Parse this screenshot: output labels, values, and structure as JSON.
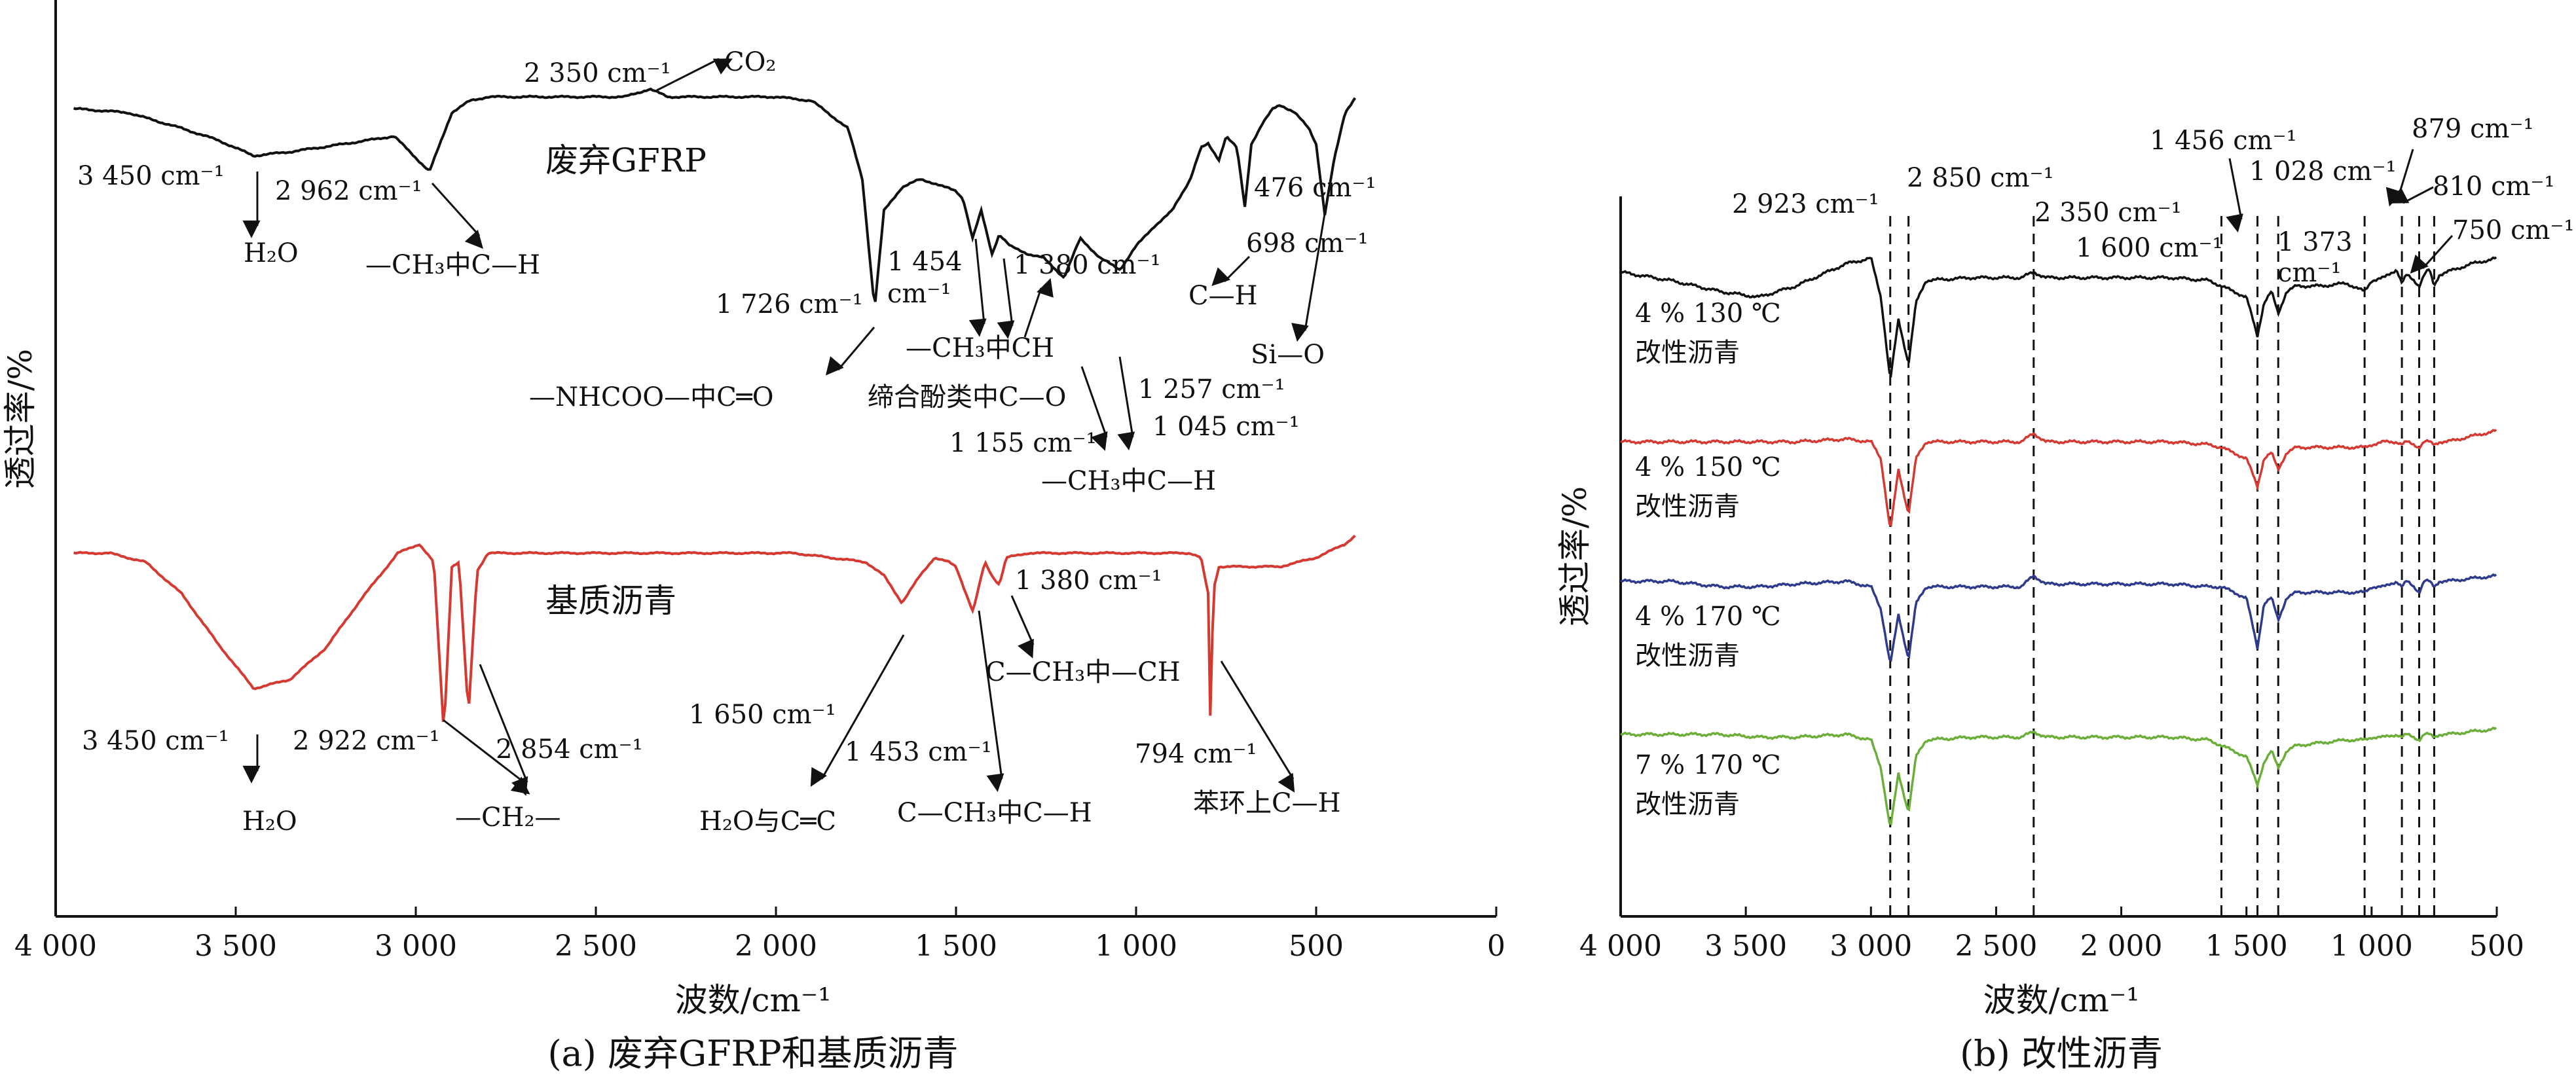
{
  "chart_data": [
    {
      "type": "line",
      "caption": "(a) 废弃GFRP和基质沥青",
      "xlabel": "波数/cm⁻¹",
      "ylabel": "透过率/%",
      "xlim": [
        4000,
        0
      ],
      "x_reversed": true,
      "xticks": [
        "4 000",
        "3 500",
        "3 000",
        "2 500",
        "2 000",
        "1 500",
        "1 000",
        "500",
        "0"
      ],
      "y_ticks_shown": false,
      "grid": false,
      "colors": {
        "waste_gfrp": "#111111",
        "base_asphalt": "#d43a32"
      },
      "series": [
        {
          "name": "废弃GFRP",
          "color": "#111111",
          "x": [
            3950,
            3800,
            3650,
            3550,
            3450,
            3350,
            3200,
            3060,
            2962,
            2900,
            2850,
            2800,
            2700,
            2600,
            2500,
            2420,
            2350,
            2300,
            2200,
            2100,
            2000,
            1900,
            1800,
            1760,
            1726,
            1700,
            1650,
            1600,
            1560,
            1530,
            1500,
            1480,
            1454,
            1430,
            1400,
            1380,
            1350,
            1300,
            1257,
            1200,
            1155,
            1100,
            1045,
            1000,
            950,
            900,
            850,
            820,
            800,
            770,
            750,
            720,
            698,
            680,
            650,
            620,
            600,
            560,
            520,
            500,
            476,
            450,
            420,
            390
          ],
          "y": [
            93,
            92,
            88,
            85,
            81,
            82,
            84,
            86,
            77,
            92,
            95,
            96,
            96,
            96,
            96,
            96,
            98,
            96,
            96,
            96,
            96,
            95,
            88,
            75,
            42,
            67,
            73,
            75,
            74,
            73,
            72,
            70,
            60,
            67,
            56,
            61,
            58,
            56,
            55,
            50,
            60,
            55,
            52,
            58,
            63,
            67,
            75,
            83,
            84,
            80,
            86,
            83,
            68,
            84,
            89,
            93,
            94,
            92,
            88,
            84,
            66,
            80,
            92,
            96
          ]
        },
        {
          "name": "基质沥青",
          "color": "#d43a32",
          "x": [
            3950,
            3850,
            3750,
            3650,
            3550,
            3450,
            3350,
            3250,
            3150,
            3050,
            2990,
            2950,
            2922,
            2900,
            2880,
            2854,
            2830,
            2800,
            2700,
            2500,
            2300,
            2100,
            1950,
            1850,
            1750,
            1700,
            1650,
            1600,
            1560,
            1520,
            1500,
            1453,
            1420,
            1400,
            1380,
            1360,
            1300,
            1200,
            1000,
            900,
            850,
            820,
            800,
            794,
            785,
            770,
            740,
            700,
            600,
            500,
            420,
            390
          ],
          "y": [
            88,
            88,
            86,
            79,
            68,
            58,
            60,
            67,
            78,
            88,
            90,
            86,
            48,
            85,
            86,
            52,
            84,
            88,
            88,
            88,
            88,
            88,
            88,
            87,
            86,
            83,
            77,
            83,
            87,
            86,
            85,
            75,
            86,
            83,
            81,
            87,
            88,
            88,
            88,
            88,
            88,
            87,
            79,
            52,
            80,
            85,
            85,
            85,
            85,
            87,
            90,
            92
          ]
        }
      ],
      "labels": [
        "废弃GFRP",
        "基质沥青"
      ],
      "annotations_gfrp": {
        "co2": "2 350 cm⁻¹",
        "co2_target": "CO₂",
        "oh_peak": "3 450 cm⁻¹",
        "oh_target": "H₂O",
        "ch_peak": "2 962 cm⁻¹",
        "ch_target": "—CH₃中C—H",
        "co_peak": "1 726 cm⁻¹",
        "co_target": "—NHCOO—中C═O",
        "p1454_a": "1 454",
        "p1454_b": "cm⁻¹",
        "p1380": "1 380 cm⁻¹",
        "ch3_target": "—CH₃中CH",
        "phenol_target": "缔合酚类中C—O",
        "p1257": "1 257 cm⁻¹",
        "p1155": "1 155 cm⁻¹",
        "p1045": "1 045 cm⁻¹",
        "ch3b_target": "—CH₃中C—H",
        "p698": "698 cm⁻¹",
        "ch_b_target": "C—H",
        "p476": "476 cm⁻¹",
        "sio_target": "Si—O"
      },
      "annotations_asphalt": {
        "oh_peak": "3 450 cm⁻¹",
        "oh_target": "H₂O",
        "p2922": "2 922 cm⁻¹",
        "p2854": "2 854 cm⁻¹",
        "ch2_target": "—CH₂—",
        "p1650": "1 650 cm⁻¹",
        "cc_target": "H₂O与C═C",
        "p1453": "1 453 cm⁻¹",
        "ch3_target": "C—CH₃中C—H",
        "p1380": "1 380 cm⁻¹",
        "ch_target": "C—CH₃中—CH",
        "p794": "794 cm⁻¹",
        "arom_target": "苯环上C—H"
      }
    },
    {
      "type": "line",
      "caption": "(b) 改性沥青",
      "xlabel": "波数/cm⁻¹",
      "ylabel": "透过率/%",
      "xlim": [
        4000,
        500
      ],
      "x_reversed": true,
      "xticks": [
        "4 000",
        "3 500",
        "3 000",
        "2 500",
        "2 000",
        "1 500",
        "1 000",
        "500"
      ],
      "y_ticks_shown": false,
      "grid": false,
      "reference_lines_x": [
        2923,
        2850,
        2350,
        1600,
        1456,
        1373,
        1028,
        879,
        810,
        750
      ],
      "reference_labels": {
        "r2923": "2 923 cm⁻¹",
        "r2850": "2 850 cm⁻¹",
        "r2350": "2 350 cm⁻¹",
        "r1600": "1 600 cm⁻¹",
        "r1456": "1 456 cm⁻¹",
        "r1373a": "1 373",
        "r1373b": "cm⁻¹",
        "r1028": "1 028 cm⁻¹",
        "r879": "879 cm⁻¹",
        "r810": "810 cm⁻¹",
        "r750": "750 cm⁻¹"
      },
      "x": [
        4000,
        3800,
        3600,
        3450,
        3300,
        3100,
        3000,
        2960,
        2923,
        2890,
        2850,
        2820,
        2780,
        2600,
        2400,
        2350,
        2300,
        2000,
        1800,
        1650,
        1600,
        1550,
        1500,
        1456,
        1430,
        1400,
        1373,
        1340,
        1300,
        1200,
        1100,
        1028,
        1000,
        950,
        900,
        879,
        860,
        830,
        810,
        790,
        770,
        750,
        730,
        700,
        600,
        500
      ],
      "series": [
        {
          "name_line1": "4 % 130 ℃",
          "name_line2": "改性沥青",
          "color": "#111111",
          "y": [
            0.5,
            -1,
            -3,
            -4,
            -2,
            2,
            3,
            -4,
            -19,
            -8,
            -16,
            -5,
            -1,
            -0.5,
            -0.5,
            0.5,
            -0.5,
            -0.5,
            -0.5,
            -1,
            -2,
            -3,
            -4,
            -11,
            -5,
            -3,
            -7,
            -3,
            -2,
            -2,
            -1.5,
            -3,
            -1,
            -0.5,
            1,
            -1.5,
            0,
            -1,
            -2,
            0,
            1,
            -2,
            0,
            0.5,
            2,
            3
          ]
        },
        {
          "name_line1": "4 % 150 ℃",
          "name_line2": "改性沥青",
          "color": "#d43a32",
          "y": [
            0,
            0,
            0,
            0,
            0,
            0.5,
            0,
            -3,
            -16,
            -5,
            -13,
            -3,
            0,
            0,
            0,
            1.5,
            0,
            0,
            0,
            -0.5,
            -1,
            -2,
            -3,
            -8,
            -3,
            -2,
            -5,
            -2,
            -1,
            -1,
            -1,
            -1,
            -0.5,
            0,
            0,
            -0.5,
            0,
            -0.5,
            -1,
            0,
            0,
            -0.5,
            0,
            0,
            1,
            2
          ]
        },
        {
          "name_line1": "4 % 170 ℃",
          "name_line2": "改性沥青",
          "color": "#2e3a8c",
          "y": [
            0,
            0,
            -1,
            -1,
            -0.5,
            0,
            -1,
            -5,
            -15,
            -6,
            -14,
            -4,
            -1,
            -1,
            -1,
            1,
            -0.5,
            -0.5,
            -0.5,
            -1,
            -1,
            -2,
            -3,
            -12,
            -4,
            -3,
            -7,
            -3,
            -2,
            -2,
            -2,
            -2,
            -1,
            -1,
            0,
            -1,
            0,
            -1,
            -2,
            0,
            0,
            -1,
            0,
            0,
            0.5,
            1
          ]
        },
        {
          "name_line1": "7 % 170 ℃",
          "name_line2": "改性沥青",
          "color": "#6cae3a",
          "y": [
            0,
            0,
            0,
            -0.5,
            -0.5,
            0,
            -1,
            -6,
            -17,
            -7,
            -14,
            -4,
            -1,
            -0.5,
            -0.5,
            0.5,
            -0.5,
            -0.5,
            -0.5,
            -1,
            -2,
            -3,
            -4,
            -9,
            -5,
            -3,
            -6,
            -3,
            -2,
            -1.5,
            -1,
            -1,
            -0.5,
            -0.5,
            0,
            -0.5,
            0,
            -0.5,
            -1,
            0,
            0,
            -0.5,
            0,
            0,
            0.5,
            1
          ]
        }
      ]
    }
  ]
}
